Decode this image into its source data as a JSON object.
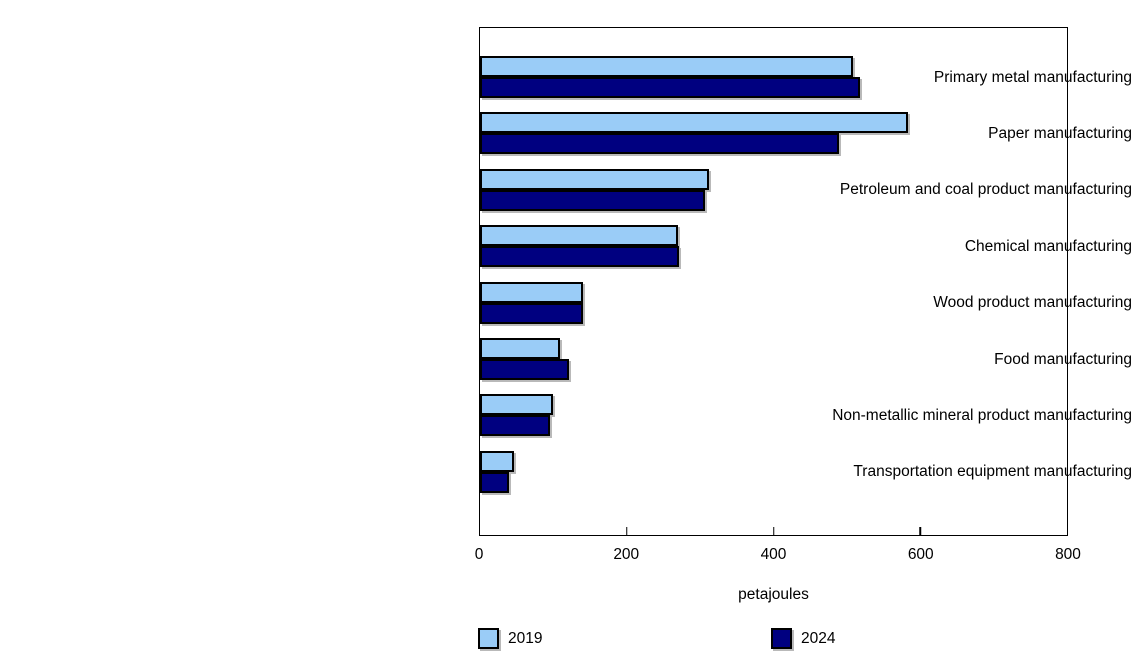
{
  "chart_data": {
    "type": "bar",
    "orientation": "horizontal",
    "title": "",
    "categories": [
      "Primary metal manufacturing",
      "Paper manufacturing",
      "Petroleum and coal product manufacturing",
      "Chemical manufacturing",
      "Wood product manufacturing",
      "Food manufacturing",
      "Non-metallic mineral product manufacturing",
      "Transportation equipment manufacturing"
    ],
    "series": [
      {
        "name": "2019",
        "color": "#9accf7",
        "values": [
          508,
          583,
          312,
          270,
          141,
          109,
          100,
          46
        ]
      },
      {
        "name": "2024",
        "color": "#000080",
        "values": [
          518,
          489,
          306,
          271,
          140,
          121,
          96,
          39
        ]
      }
    ],
    "xlabel": "petajoules",
    "xlim": [
      0,
      800
    ],
    "xticks": [
      0,
      200,
      400,
      600,
      800
    ],
    "grid": false,
    "legend_position": "bottom",
    "bar_border_color": "#000000",
    "axis_color": "#000000"
  }
}
